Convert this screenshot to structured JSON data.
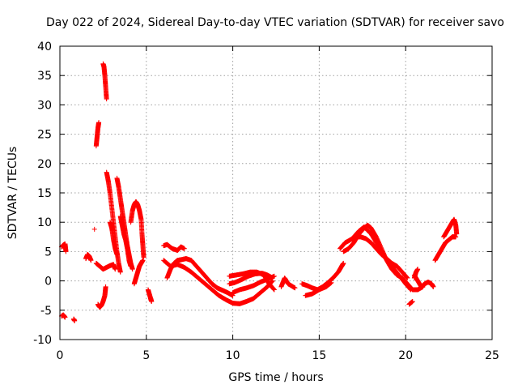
{
  "chart_data": {
    "type": "scatter",
    "title": "Day 022 of 2024, Sidereal Day-to-day VTEC variation (SDTVAR) for receiver savo",
    "xlabel": "GPS time / hours",
    "ylabel": "SDTVAR / TECUs",
    "xlim": [
      0,
      25
    ],
    "ylim": [
      -10,
      40
    ],
    "xticks": [
      0,
      5,
      10,
      15,
      20,
      25
    ],
    "yticks": [
      -10,
      -5,
      0,
      5,
      10,
      15,
      20,
      25,
      30,
      35,
      40
    ],
    "grid": true,
    "marker": "+",
    "series": [
      {
        "name": "SDTVAR",
        "color": "#ff0000",
        "segments": [
          [
            [
              0.1,
              5.8
            ],
            [
              0.2,
              6.1
            ],
            [
              0.3,
              6.3
            ],
            [
              0.35,
              5.0
            ]
          ],
          [
            [
              0.1,
              -6.0
            ],
            [
              0.2,
              -5.8
            ],
            [
              0.3,
              -6.2
            ]
          ],
          [
            [
              0.8,
              -6.5
            ],
            [
              0.85,
              -6.8
            ]
          ],
          [
            [
              1.5,
              3.8
            ],
            [
              1.6,
              4.5
            ],
            [
              1.7,
              4.2
            ],
            [
              1.8,
              3.5
            ]
          ],
          [
            [
              2.0,
              8.8
            ]
          ],
          [
            [
              2.1,
              23.0
            ],
            [
              2.15,
              24.5
            ],
            [
              2.2,
              26.0
            ],
            [
              2.25,
              27.0
            ]
          ],
          [
            [
              2.2,
              -4.0
            ],
            [
              2.3,
              -4.5
            ],
            [
              2.4,
              -4.2
            ],
            [
              2.5,
              -3.5
            ],
            [
              2.6,
              -2.5
            ],
            [
              2.65,
              -1.0
            ]
          ],
          [
            [
              2.1,
              3.0
            ],
            [
              2.3,
              2.5
            ],
            [
              2.5,
              2.0
            ],
            [
              2.7,
              2.3
            ],
            [
              2.9,
              2.6
            ],
            [
              3.1,
              2.8
            ],
            [
              3.2,
              2.0
            ]
          ],
          [
            [
              2.5,
              37.0
            ],
            [
              2.55,
              36.5
            ],
            [
              2.6,
              35.0
            ],
            [
              2.65,
              33.0
            ],
            [
              2.7,
              31.0
            ]
          ],
          [
            [
              2.7,
              18.5
            ],
            [
              2.8,
              17.0
            ],
            [
              2.9,
              15.0
            ],
            [
              3.0,
              12.5
            ],
            [
              3.1,
              10.0
            ],
            [
              3.2,
              7.5
            ],
            [
              3.3,
              5.0
            ],
            [
              3.4,
              3.0
            ],
            [
              3.5,
              1.5
            ]
          ],
          [
            [
              2.9,
              10.0
            ],
            [
              3.0,
              9.0
            ],
            [
              3.1,
              7.0
            ],
            [
              3.2,
              5.5
            ],
            [
              3.3,
              4.5
            ]
          ],
          [
            [
              3.3,
              17.5
            ],
            [
              3.4,
              16.0
            ],
            [
              3.5,
              14.0
            ],
            [
              3.6,
              12.0
            ],
            [
              3.7,
              10.0
            ],
            [
              3.8,
              8.0
            ],
            [
              3.9,
              6.0
            ],
            [
              4.0,
              4.5
            ],
            [
              4.1,
              3.0
            ],
            [
              4.2,
              2.0
            ]
          ],
          [
            [
              3.5,
              11.0
            ],
            [
              3.6,
              9.5
            ],
            [
              3.7,
              8.0
            ],
            [
              3.8,
              7.0
            ],
            [
              3.9,
              5.5
            ],
            [
              4.0,
              3.5
            ],
            [
              4.1,
              2.5
            ]
          ],
          [
            [
              4.1,
              10.0
            ],
            [
              4.2,
              12.0
            ],
            [
              4.3,
              13.0
            ],
            [
              4.4,
              13.5
            ],
            [
              4.5,
              13.0
            ],
            [
              4.6,
              12.0
            ],
            [
              4.7,
              10.5
            ],
            [
              4.75,
              8.0
            ],
            [
              4.8,
              6.0
            ],
            [
              4.85,
              4.0
            ]
          ],
          [
            [
              4.3,
              -0.5
            ],
            [
              4.4,
              0.5
            ],
            [
              4.5,
              1.5
            ],
            [
              4.6,
              2.5
            ],
            [
              4.7,
              3.0
            ],
            [
              4.8,
              3.5
            ]
          ],
          [
            [
              5.1,
              -1.5
            ],
            [
              5.2,
              -2.5
            ],
            [
              5.3,
              -3.5
            ],
            [
              5.25,
              -3.0
            ]
          ],
          [
            [
              6.0,
              6.0
            ],
            [
              6.2,
              6.2
            ],
            [
              6.5,
              5.5
            ],
            [
              6.8,
              5.2
            ],
            [
              7.0,
              5.8
            ],
            [
              7.2,
              5.5
            ]
          ],
          [
            [
              6.2,
              0.5
            ],
            [
              6.4,
              2.0
            ],
            [
              6.6,
              3.0
            ],
            [
              6.8,
              3.5
            ],
            [
              7.0,
              3.6
            ],
            [
              7.3,
              3.8
            ],
            [
              7.6,
              3.5
            ],
            [
              7.9,
              2.5
            ],
            [
              8.2,
              1.5
            ],
            [
              8.5,
              0.5
            ],
            [
              8.8,
              -0.5
            ],
            [
              9.1,
              -1.2
            ],
            [
              9.4,
              -1.6
            ],
            [
              9.7,
              -2.0
            ],
            [
              10.0,
              -2.5
            ]
          ],
          [
            [
              6.0,
              3.5
            ],
            [
              6.4,
              2.5
            ],
            [
              6.8,
              2.8
            ],
            [
              7.2,
              2.3
            ],
            [
              7.6,
              1.5
            ],
            [
              8.0,
              0.5
            ],
            [
              8.4,
              -0.5
            ],
            [
              8.8,
              -1.5
            ],
            [
              9.2,
              -2.5
            ],
            [
              9.6,
              -3.2
            ],
            [
              10.0,
              -3.8
            ],
            [
              10.4,
              -3.9
            ],
            [
              10.8,
              -3.5
            ],
            [
              11.2,
              -3.0
            ],
            [
              11.6,
              -2.0
            ],
            [
              12.0,
              -1.0
            ],
            [
              12.3,
              0.0
            ]
          ],
          [
            [
              9.8,
              -0.5
            ],
            [
              10.1,
              -0.3
            ],
            [
              10.5,
              0.2
            ],
            [
              10.9,
              0.8
            ],
            [
              11.3,
              1.2
            ],
            [
              11.7,
              1.3
            ],
            [
              12.0,
              1.0
            ],
            [
              12.3,
              0.5
            ]
          ],
          [
            [
              9.8,
              0.8
            ],
            [
              10.2,
              1.0
            ],
            [
              10.6,
              1.2
            ],
            [
              11.0,
              1.5
            ],
            [
              11.4,
              1.5
            ],
            [
              11.8,
              1.0
            ],
            [
              12.1,
              -0.5
            ],
            [
              12.4,
              -1.5
            ]
          ],
          [
            [
              10.0,
              -2.0
            ],
            [
              10.4,
              -1.5
            ],
            [
              10.8,
              -1.2
            ],
            [
              11.2,
              -0.8
            ],
            [
              11.6,
              -0.2
            ],
            [
              12.0,
              0.3
            ],
            [
              12.4,
              0.8
            ]
          ],
          [
            [
              12.8,
              -1.0
            ],
            [
              13.0,
              0.5
            ],
            [
              13.2,
              -0.5
            ],
            [
              13.6,
              -1.2
            ]
          ],
          [
            [
              14.0,
              -0.5
            ],
            [
              14.3,
              -0.8
            ],
            [
              14.6,
              -1.2
            ],
            [
              14.9,
              -1.5
            ],
            [
              15.2,
              -1.0
            ],
            [
              15.5,
              -0.3
            ],
            [
              15.8,
              0.5
            ],
            [
              16.1,
              1.5
            ],
            [
              16.3,
              2.5
            ],
            [
              16.4,
              3.0
            ]
          ],
          [
            [
              14.2,
              -2.5
            ],
            [
              14.6,
              -2.2
            ],
            [
              15.0,
              -1.5
            ],
            [
              15.4,
              -1.0
            ],
            [
              15.7,
              -0.3
            ]
          ],
          [
            [
              16.2,
              5.5
            ],
            [
              16.5,
              6.5
            ],
            [
              16.8,
              7.0
            ],
            [
              17.1,
              7.5
            ],
            [
              17.4,
              7.5
            ],
            [
              17.7,
              7.2
            ],
            [
              18.0,
              6.5
            ],
            [
              18.3,
              5.5
            ],
            [
              18.6,
              4.5
            ],
            [
              18.9,
              3.8
            ],
            [
              19.2,
              3.0
            ],
            [
              19.5,
              2.5
            ],
            [
              19.8,
              1.5
            ],
            [
              20.1,
              0.5
            ]
          ],
          [
            [
              16.4,
              5.0
            ],
            [
              16.7,
              5.5
            ],
            [
              17.0,
              6.5
            ],
            [
              17.3,
              8.0
            ],
            [
              17.6,
              9.0
            ],
            [
              17.8,
              9.5
            ],
            [
              18.0,
              9.0
            ],
            [
              18.3,
              7.5
            ],
            [
              18.6,
              5.5
            ],
            [
              18.9,
              3.5
            ],
            [
              19.2,
              2.0
            ],
            [
              19.5,
              1.0
            ],
            [
              19.8,
              0.5
            ],
            [
              20.1,
              -0.5
            ],
            [
              20.4,
              -1.5
            ],
            [
              20.7,
              -1.5
            ],
            [
              21.0,
              -1.0
            ]
          ],
          [
            [
              17.0,
              7.5
            ],
            [
              17.3,
              8.5
            ],
            [
              17.6,
              9.2
            ],
            [
              18.0,
              8.0
            ],
            [
              18.4,
              6.0
            ],
            [
              18.8,
              4.0
            ],
            [
              19.2,
              2.5
            ],
            [
              19.6,
              1.0
            ],
            [
              20.0,
              -0.5
            ],
            [
              20.3,
              -1.5
            ]
          ],
          [
            [
              20.2,
              -4.0
            ],
            [
              20.4,
              -3.5
            ]
          ],
          [
            [
              20.5,
              1.0
            ],
            [
              20.7,
              0.0
            ],
            [
              20.9,
              -1.0
            ],
            [
              21.1,
              -0.5
            ],
            [
              21.3,
              -0.2
            ],
            [
              21.5,
              -0.5
            ],
            [
              21.6,
              -1.0
            ]
          ],
          [
            [
              20.5,
              0.5
            ],
            [
              20.6,
              1.5
            ],
            [
              20.7,
              2.0
            ]
          ],
          [
            [
              21.7,
              3.5
            ],
            [
              21.9,
              4.5
            ],
            [
              22.1,
              5.5
            ],
            [
              22.3,
              6.5
            ],
            [
              22.5,
              7.0
            ],
            [
              22.7,
              7.5
            ],
            [
              22.9,
              7.5
            ]
          ],
          [
            [
              22.2,
              7.5
            ],
            [
              22.4,
              8.5
            ],
            [
              22.6,
              9.5
            ],
            [
              22.8,
              10.5
            ],
            [
              22.9,
              9.5
            ],
            [
              22.95,
              8.0
            ]
          ]
        ]
      }
    ]
  }
}
